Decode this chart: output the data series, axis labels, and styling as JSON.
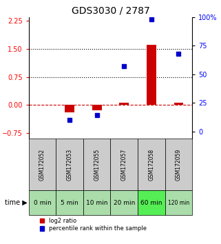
{
  "title": "GDS3030 / 2787",
  "samples": [
    "GSM172052",
    "GSM172053",
    "GSM172055",
    "GSM172057",
    "GSM172058",
    "GSM172059"
  ],
  "time_labels": [
    "0 min",
    "5 min",
    "10 min",
    "20 min",
    "60 min",
    "120 min"
  ],
  "log2_ratio": [
    0.0,
    -0.2,
    -0.15,
    0.05,
    1.6,
    0.05
  ],
  "percentile_rank": [
    null,
    10,
    14,
    57,
    98,
    68
  ],
  "left_yticks": [
    -0.75,
    0.0,
    0.75,
    1.5,
    2.25
  ],
  "right_yticks": [
    0,
    25,
    50,
    75,
    100
  ],
  "ylim_left": [
    -0.9,
    2.35
  ],
  "ylim_right": [
    -6.25,
    100
  ],
  "hlines": [
    0.75,
    1.5
  ],
  "bar_color": "#cc0000",
  "dot_color": "#0000cc",
  "bg_color_gsm": "#cccccc",
  "bg_color_time_light": "#aaddaa",
  "bg_color_time_bright": "#55ee55",
  "time_row_colors": [
    "#aaddaa",
    "#aaddaa",
    "#aaddaa",
    "#aaddaa",
    "#55ee55",
    "#aaddaa"
  ],
  "legend_bar_label": "log2 ratio",
  "legend_dot_label": "percentile rank within the sample",
  "xlabel_left": "",
  "bar_width": 0.35
}
